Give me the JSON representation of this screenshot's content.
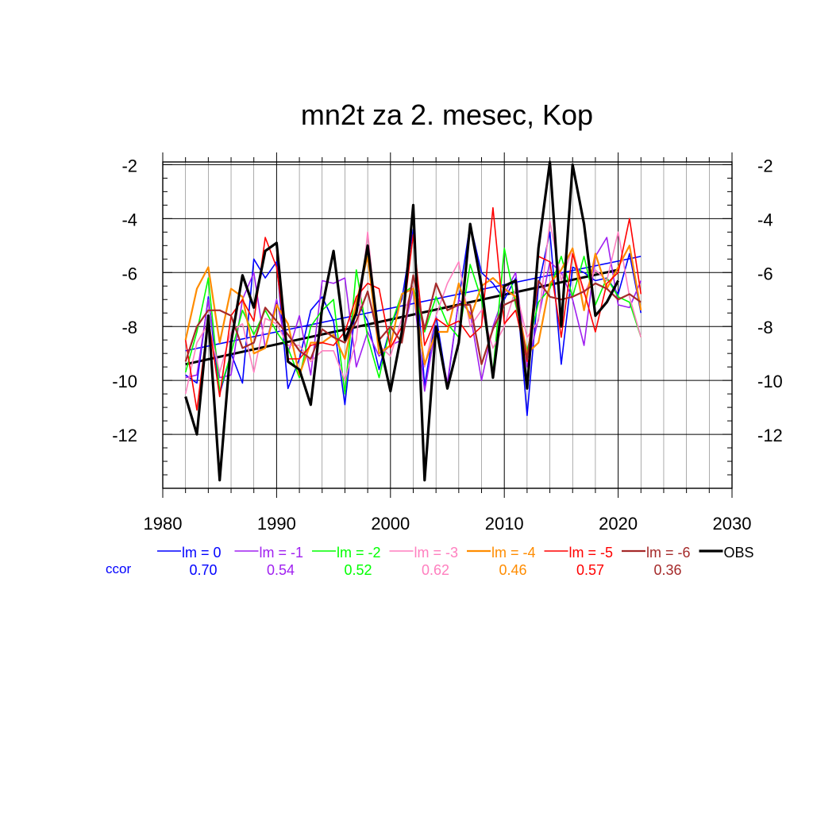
{
  "chart_data": {
    "type": "line",
    "title": "mn2t za 2. mesec, Kop",
    "xlabel": "",
    "ylabel": "",
    "xlim": [
      1980,
      2030
    ],
    "ylim": [
      -14,
      -1.9
    ],
    "x_ticks": [
      1980,
      1990,
      2000,
      2010,
      2020,
      2030
    ],
    "y_ticks": [
      -2,
      -4,
      -6,
      -8,
      -10,
      -12
    ],
    "grid": true,
    "legend_position": "bottom",
    "ccor_label": "ccor",
    "x": [
      1982,
      1983,
      1984,
      1985,
      1986,
      1987,
      1988,
      1989,
      1990,
      1991,
      1992,
      1993,
      1994,
      1995,
      1996,
      1997,
      1998,
      1999,
      2000,
      2001,
      2002,
      2003,
      2004,
      2005,
      2006,
      2007,
      2008,
      2009,
      2010,
      2011,
      2012,
      2013,
      2014,
      2015,
      2016,
      2017,
      2018,
      2019,
      2020,
      2021,
      2022
    ],
    "series": [
      {
        "name": "lm = 0",
        "ccor": "0.70",
        "color": "#0000ff",
        "width": 1.6,
        "values": [
          -9.8,
          -10.1,
          -6.9,
          -10.5,
          -9.0,
          -10.1,
          -5.5,
          -6.2,
          -5.6,
          -10.3,
          -9.2,
          -7.4,
          -6.9,
          -7.8,
          -10.9,
          -7.0,
          -7.8,
          -9.6,
          -8.0,
          -7.0,
          -4.4,
          -10.2,
          -7.6,
          -10.2,
          -7.0,
          -4.2,
          -6.0,
          -6.4,
          -7.0,
          -6.2,
          -11.3,
          -6.5,
          -4.5,
          -9.4,
          -5.8,
          -6.0,
          -6.3,
          -6.2,
          -6.8,
          -5.3,
          -7.5
        ],
        "trend": [
          [
            1982,
            -8.9
          ],
          [
            2022,
            -5.4
          ]
        ]
      },
      {
        "name": "lm = -1",
        "ccor": "0.54",
        "color": "#a020f0",
        "width": 1.6,
        "values": [
          -9.9,
          -9.8,
          -7.0,
          -9.9,
          -9.8,
          -7.0,
          -6.0,
          -8.8,
          -7.0,
          -9.0,
          -7.6,
          -9.8,
          -6.3,
          -6.4,
          -6.2,
          -9.5,
          -8.2,
          -9.1,
          -8.7,
          -8.5,
          -6.6,
          -10.4,
          -8.0,
          -10.1,
          -7.0,
          -7.5,
          -10.0,
          -8.0,
          -6.8,
          -6.0,
          -9.5,
          -7.7,
          -5.6,
          -6.0,
          -7.0,
          -8.7,
          -5.4,
          -4.7,
          -7.2,
          -7.3,
          -6.3
        ]
      },
      {
        "name": "lm = -2",
        "ccor": "0.52",
        "color": "#00ff00",
        "width": 1.6,
        "values": [
          -9.7,
          -8.2,
          -6.2,
          -10.4,
          -9.0,
          -7.4,
          -8.3,
          -7.4,
          -8.2,
          -8.8,
          -9.9,
          -8.0,
          -7.4,
          -7.0,
          -10.5,
          -5.9,
          -8.4,
          -9.9,
          -8.0,
          -6.8,
          -6.5,
          -8.2,
          -6.9,
          -7.9,
          -8.4,
          -5.7,
          -7.0,
          -9.7,
          -5.1,
          -7.2,
          -8.9,
          -7.1,
          -6.6,
          -5.4,
          -6.9,
          -5.4,
          -7.2,
          -6.2,
          -6.9,
          -7.1,
          -8.4
        ]
      },
      {
        "name": "lm = -3",
        "ccor": "0.62",
        "color": "#ff7fbf",
        "width": 1.6,
        "values": [
          -10.5,
          -8.6,
          -7.9,
          -9.7,
          -8.2,
          -7.9,
          -9.7,
          -7.7,
          -7.9,
          -8.7,
          -8.7,
          -9.3,
          -8.9,
          -8.9,
          -10.0,
          -8.5,
          -4.5,
          -8.7,
          -9.1,
          -7.7,
          -6.5,
          -9.5,
          -7.6,
          -6.4,
          -5.6,
          -8.0,
          -7.4,
          -8.8,
          -8.0,
          -6.6,
          -8.4,
          -7.8,
          -4.1,
          -6.3,
          -5.1,
          -6.8,
          -5.9,
          -6.3,
          -4.5,
          -6.9,
          -8.4
        ]
      },
      {
        "name": "lm = -4",
        "ccor": "0.46",
        "color": "#ff8c00",
        "width": 2.2,
        "values": [
          -8.5,
          -6.6,
          -5.8,
          -8.6,
          -6.6,
          -6.9,
          -9.0,
          -8.8,
          -7.2,
          -7.9,
          -9.8,
          -8.6,
          -8.6,
          -8.3,
          -9.2,
          -7.1,
          -5.4,
          -9.0,
          -8.7,
          -6.8,
          -6.6,
          -9.4,
          -8.2,
          -8.2,
          -6.4,
          -7.7,
          -6.5,
          -6.2,
          -6.6,
          -6.9,
          -9.0,
          -8.6,
          -6.4,
          -5.9,
          -5.1,
          -7.4,
          -5.3,
          -6.6,
          -5.8,
          -5.0,
          -7.4
        ]
      },
      {
        "name": "lm = -5",
        "ccor": "0.57",
        "color": "#ff0000",
        "width": 1.6,
        "values": [
          -8.5,
          -11.1,
          -7.7,
          -10.6,
          -7.6,
          -7.0,
          -7.8,
          -4.7,
          -5.8,
          -9.2,
          -9.2,
          -8.7,
          -8.6,
          -8.7,
          -8.2,
          -6.9,
          -6.4,
          -6.6,
          -8.8,
          -8.0,
          -4.6,
          -8.7,
          -7.7,
          -8.0,
          -7.8,
          -8.4,
          -8.0,
          -3.6,
          -7.9,
          -7.4,
          -9.3,
          -5.4,
          -5.6,
          -8.4,
          -5.3,
          -6.7,
          -8.2,
          -6.4,
          -6.0,
          -4.0,
          -6.8
        ]
      },
      {
        "name": "lm = -6",
        "ccor": "0.36",
        "color": "#a52a2a",
        "width": 2.2,
        "values": [
          -9.3,
          -8.0,
          -7.4,
          -7.4,
          -7.6,
          -8.8,
          -8.6,
          -7.3,
          -7.8,
          -8.3,
          -8.9,
          -9.2,
          -8.1,
          -8.4,
          -8.6,
          -7.8,
          -6.7,
          -8.5,
          -8.0,
          -8.6,
          -6.1,
          -8.1,
          -6.4,
          -7.4,
          -7.2,
          -7.2,
          -9.4,
          -8.1,
          -7.2,
          -7.0,
          -9.2,
          -6.3,
          -6.9,
          -7.0,
          -6.9,
          -6.7,
          -6.4,
          -6.6,
          -7.0,
          -6.8,
          -7.1
        ]
      },
      {
        "name": "OBS",
        "ccor": "",
        "color": "#000000",
        "width": 3.2,
        "values": [
          -10.6,
          -12.0,
          -7.6,
          -13.7,
          -8.6,
          -6.1,
          -7.3,
          -5.2,
          -4.9,
          -9.3,
          -9.6,
          -10.9,
          -7.3,
          -5.2,
          -8.5,
          -7.5,
          -5.0,
          -8.5,
          -10.4,
          -8.2,
          -3.5,
          -13.7,
          -8.0,
          -10.3,
          -8.6,
          -4.2,
          -6.5,
          -9.9,
          -6.5,
          -6.3,
          -10.3,
          -5.1,
          -1.9,
          -8.0,
          -2.0,
          -4.2,
          -7.6,
          -7.1,
          -6.3,
          null,
          null
        ],
        "trend": [
          [
            1982,
            -9.4
          ],
          [
            2020,
            -5.9
          ]
        ]
      }
    ]
  }
}
